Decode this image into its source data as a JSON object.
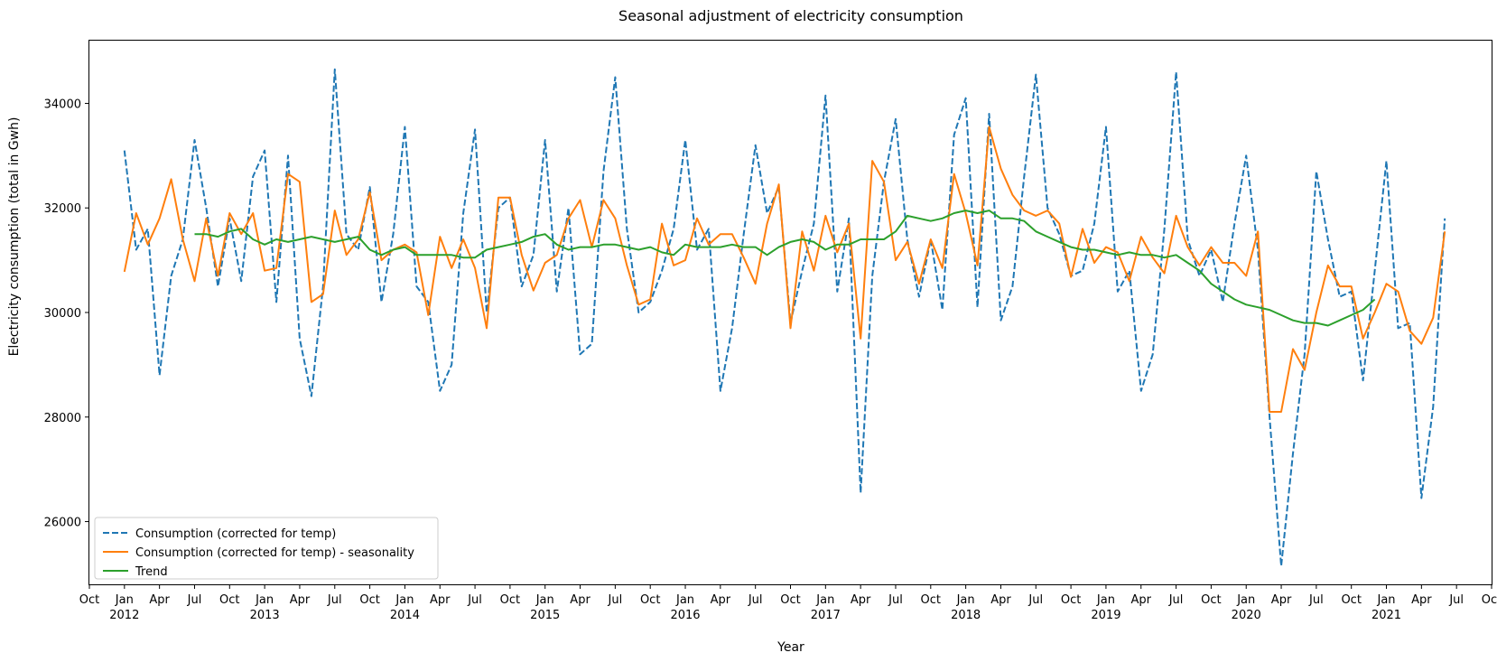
{
  "chart_data": {
    "type": "line",
    "title": "Seasonal adjustment of electricity consumption",
    "xlabel": "Year",
    "ylabel": "Electricity consumption (total in Gwh)",
    "x_start": "2012-01",
    "x_end": "2021-06",
    "xlim": [
      "2011-10",
      "2021-10"
    ],
    "ylim": [
      24800,
      35200
    ],
    "yticks": [
      26000,
      28000,
      30000,
      32000,
      34000
    ],
    "month_tick_labels": [
      "Jan",
      "Apr",
      "Jul",
      "Oct"
    ],
    "year_labels": [
      "2012",
      "2013",
      "2014",
      "2015",
      "2016",
      "2017",
      "2018",
      "2019",
      "2020",
      "2021"
    ],
    "grid": false,
    "legend": {
      "position": "lower-left"
    },
    "series": [
      {
        "name": "Consumption (corrected for temp)",
        "color": "#1f77b4",
        "style": "dashed",
        "start": "2012-01",
        "values": [
          33100,
          31200,
          31600,
          28800,
          30700,
          31400,
          33300,
          32000,
          30500,
          31800,
          30600,
          32600,
          33100,
          30200,
          33000,
          29500,
          28400,
          30500,
          34650,
          31500,
          31200,
          32400,
          30200,
          31500,
          33550,
          30500,
          30200,
          28500,
          29000,
          31900,
          33500,
          30000,
          32000,
          32200,
          30500,
          31100,
          33300,
          30400,
          32000,
          29200,
          29400,
          32700,
          34500,
          31600,
          30000,
          30200,
          30800,
          31600,
          33300,
          31200,
          31600,
          28500,
          29700,
          31500,
          33200,
          31900,
          32400,
          29800,
          30800,
          31700,
          34150,
          30400,
          31800,
          26550,
          30700,
          32500,
          33700,
          31400,
          30300,
          31400,
          30050,
          33400,
          34100,
          30100,
          33800,
          29850,
          30500,
          32600,
          34550,
          32000,
          31500,
          30700,
          30800,
          31700,
          33550,
          30400,
          30800,
          28500,
          29200,
          31600,
          34600,
          31400,
          30700,
          31200,
          30200,
          31700,
          33000,
          31200,
          28000,
          25150,
          27300,
          29200,
          32700,
          31400,
          30300,
          30400,
          28700,
          30800,
          32900,
          29700,
          29800,
          26450,
          28200,
          31800
        ]
      },
      {
        "name": "Consumption (corrected for temp) - seasonality",
        "color": "#ff7f0e",
        "style": "solid",
        "start": "2012-01",
        "values": [
          30780,
          31900,
          31300,
          31800,
          32550,
          31400,
          30600,
          31800,
          30700,
          31900,
          31500,
          31900,
          30800,
          30850,
          32650,
          32500,
          30200,
          30350,
          31950,
          31100,
          31400,
          32300,
          31000,
          31200,
          31300,
          31150,
          29950,
          31450,
          30850,
          31400,
          30850,
          29700,
          32200,
          32200,
          31100,
          30420,
          30950,
          31100,
          31800,
          32150,
          31250,
          32150,
          31800,
          30900,
          30150,
          30250,
          31700,
          30900,
          31000,
          31800,
          31300,
          31500,
          31500,
          31050,
          30550,
          31700,
          32450,
          29700,
          31550,
          30800,
          31850,
          31150,
          31700,
          29500,
          32900,
          32500,
          31000,
          31350,
          30550,
          31400,
          30850,
          32650,
          31900,
          30900,
          33550,
          32750,
          32250,
          31950,
          31850,
          31950,
          31700,
          30680,
          31600,
          30950,
          31250,
          31150,
          30600,
          31450,
          31050,
          30750,
          31850,
          31250,
          30900,
          31250,
          30950,
          30950,
          30700,
          31550,
          28100,
          28100,
          29300,
          28900,
          30000,
          30900,
          30500,
          30500,
          29500,
          30000,
          30550,
          30400,
          29650,
          29400,
          29900,
          31550
        ]
      },
      {
        "name": "Trend",
        "color": "#2ca02c",
        "style": "solid",
        "start": "2012-07",
        "values": [
          31500,
          31500,
          31450,
          31550,
          31600,
          31400,
          31300,
          31400,
          31350,
          31400,
          31450,
          31400,
          31350,
          31400,
          31450,
          31200,
          31100,
          31200,
          31250,
          31100,
          31100,
          31100,
          31100,
          31050,
          31050,
          31200,
          31250,
          31300,
          31350,
          31450,
          31500,
          31300,
          31200,
          31250,
          31250,
          31300,
          31300,
          31250,
          31200,
          31250,
          31150,
          31100,
          31300,
          31250,
          31250,
          31250,
          31300,
          31250,
          31250,
          31100,
          31250,
          31350,
          31400,
          31350,
          31200,
          31300,
          31300,
          31400,
          31400,
          31400,
          31550,
          31850,
          31800,
          31750,
          31800,
          31900,
          31950,
          31900,
          31950,
          31800,
          31800,
          31750,
          31550,
          31450,
          31350,
          31250,
          31200,
          31200,
          31150,
          31100,
          31150,
          31100,
          31100,
          31050,
          31100,
          30950,
          30800,
          30550,
          30400,
          30250,
          30150,
          30100,
          30050,
          29950,
          29850,
          29800,
          29800,
          29750,
          29850,
          29950,
          30050,
          30250
        ]
      }
    ]
  }
}
